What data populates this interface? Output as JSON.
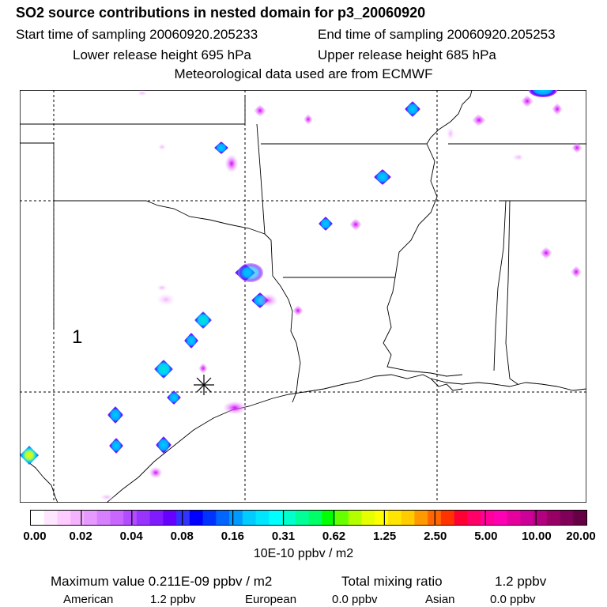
{
  "header": {
    "title": "SO2 source contributions in nested domain for p3_20060920",
    "start_time": "Start time of sampling 20060920.205233",
    "end_time": "End time of sampling 20060920.205253",
    "lower_height": "Lower release height  695 hPa",
    "upper_height": "Upper release height  685 hPa",
    "met_data": "Meteorological data used are from ECMWF"
  },
  "map": {
    "region_label": "1",
    "release_marker": "asterisk"
  },
  "colorbar": {
    "colors": [
      "#ffffff",
      "#ffe6ff",
      "#ffccff",
      "#f5b3ff",
      "#e699ff",
      "#d780ff",
      "#c966ff",
      "#b24dff",
      "#9933ff",
      "#801aff",
      "#6600ff",
      "#3333ff",
      "#0000ff",
      "#0033ff",
      "#0066ff",
      "#0099ff",
      "#00ccff",
      "#00e6ff",
      "#00ffff",
      "#00ffcc",
      "#00ff99",
      "#00ff66",
      "#00ff00",
      "#66ff00",
      "#b3ff00",
      "#e6ff00",
      "#ffff00",
      "#ffe600",
      "#ffcc00",
      "#ff9900",
      "#ff6600",
      "#ff3300",
      "#ff0033",
      "#ff0066",
      "#ff0099",
      "#ff00b3",
      "#e6009e",
      "#cc0099",
      "#b30080",
      "#990066",
      "#800059",
      "#660044"
    ],
    "ticks": [
      "0.00",
      "0.02",
      "0.04",
      "0.08",
      "0.16",
      "0.31",
      "0.62",
      "1.25",
      "2.50",
      "5.00",
      "10.00",
      "20.00"
    ],
    "unit": "10E-10 ppbv / m2"
  },
  "summary": {
    "max_value": "Maximum value  0.211E-09 ppbv / m2",
    "total_mixing": "Total mixing ratio",
    "total_value": "1.2 ppbv",
    "american_label": "American",
    "american_value": "1.2 ppbv",
    "european_label": "European",
    "european_value": "0.0 ppbv",
    "asian_label": "Asian",
    "asian_value": "0.0 ppbv"
  }
}
